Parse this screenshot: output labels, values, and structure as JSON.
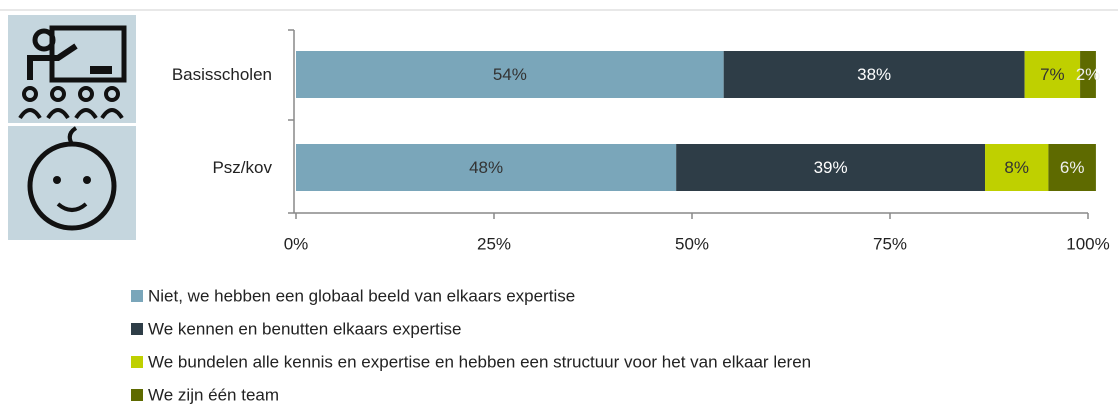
{
  "chart_data": {
    "type": "stacked_bar_horizontal",
    "categories": [
      "Basisscholen",
      "Psz/kov"
    ],
    "series": [
      {
        "name": "Niet, we hebben een globaal beeld van elkaars expertise",
        "color": "#7aa6ba",
        "label_color": "#333333",
        "values": [
          54,
          48
        ],
        "value_labels": [
          "54%",
          "48%"
        ]
      },
      {
        "name": "We kennen en benutten elkaars expertise",
        "color": "#2e3d47",
        "label_color": "#ffffff",
        "values": [
          38,
          39
        ],
        "value_labels": [
          "38%",
          "39%"
        ]
      },
      {
        "name": "We bundelen alle kennis en expertise en hebben een structuur voor het van elkaar leren",
        "color": "#bfd000",
        "label_color": "#333333",
        "values": [
          7,
          8
        ],
        "value_labels": [
          "7%",
          "8%"
        ]
      },
      {
        "name": "We zijn één team",
        "color": "#5e6a00",
        "label_color": "#eeeeee",
        "values": [
          2,
          6
        ],
        "value_labels": [
          "2%",
          "6%"
        ]
      }
    ],
    "xlim": [
      0,
      100
    ],
    "xticks": [
      {
        "value": 0,
        "label": "0%"
      },
      {
        "value": 25,
        "label": "25%"
      },
      {
        "value": 50,
        "label": "50%"
      },
      {
        "value": 75,
        "label": "75%"
      },
      {
        "value": 100,
        "label": "100%"
      }
    ],
    "legend": "bottom"
  }
}
